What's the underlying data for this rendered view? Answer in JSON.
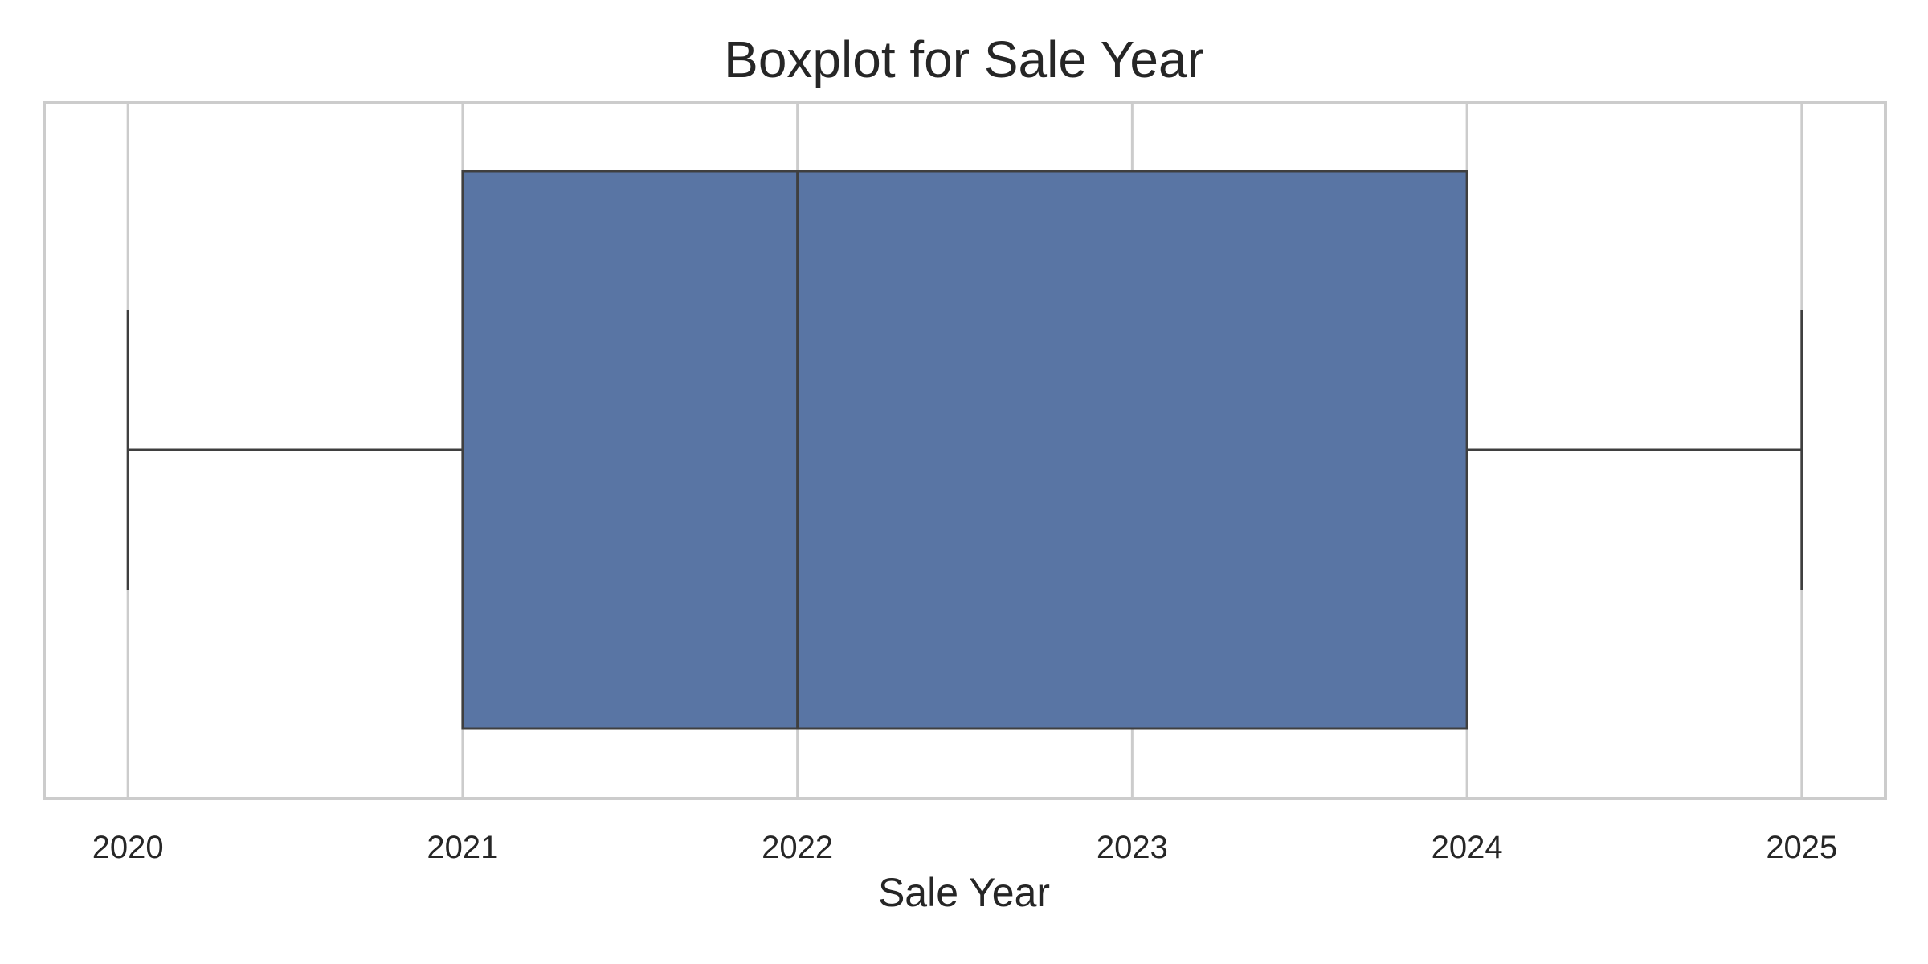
{
  "chart_data": {
    "type": "boxplot",
    "title": "Boxplot for Sale Year",
    "xlabel": "Sale Year",
    "ylabel": "",
    "xlim": [
      2019.75,
      2025.25
    ],
    "xticks": [
      2020,
      2021,
      2022,
      2023,
      2024,
      2025
    ],
    "grid": true,
    "legend": "none",
    "series": [
      {
        "whisker_low": 2020,
        "q1": 2021,
        "median": 2022,
        "q3": 2024,
        "whisker_high": 2025
      }
    ],
    "colors": {
      "box_fill": "#5975a4",
      "line": "#3f3f3f",
      "grid": "#cccccc",
      "text": "#262626"
    }
  }
}
